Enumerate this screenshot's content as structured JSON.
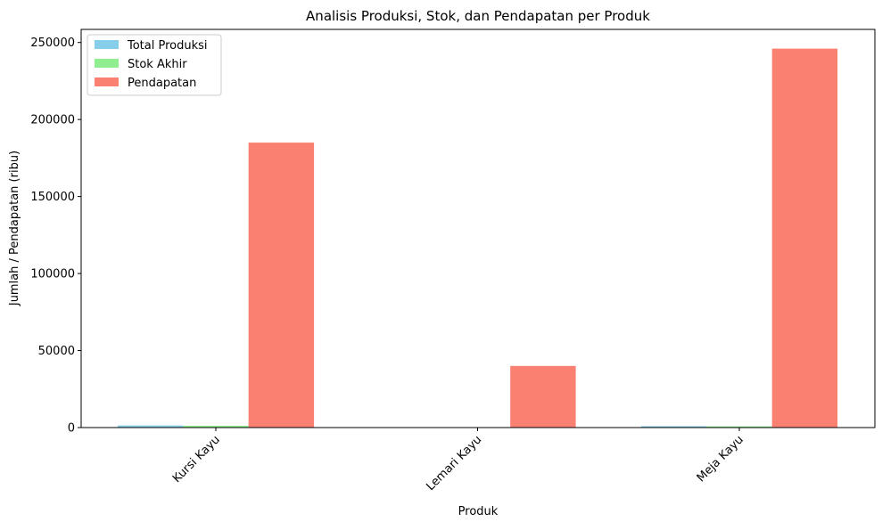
{
  "chart_data": {
    "type": "bar",
    "title": "Analisis Produksi, Stok, dan Pendapatan per Produk",
    "xlabel": "Produk",
    "ylabel": "Jumlah / Pendapatan (ribu)",
    "categories": [
      "Kursi Kayu",
      "Lemari Kayu",
      "Meja Kayu"
    ],
    "series": [
      {
        "name": "Total Produksi",
        "color": "#87CEEB",
        "values": [
          1350,
          250,
          900
        ]
      },
      {
        "name": "Stok Akhir",
        "color": "#90EE90",
        "values": [
          1200,
          200,
          800
        ]
      },
      {
        "name": "Pendapatan",
        "color": "#FA8072",
        "values": [
          185000,
          40000,
          246000
        ]
      }
    ],
    "ylim": [
      0,
      258500
    ],
    "yticks": [
      0,
      50000,
      100000,
      150000,
      200000,
      250000
    ],
    "ytick_labels": [
      "0",
      "50000",
      "100000",
      "150000",
      "200000",
      "250000"
    ],
    "grid": false,
    "legend": "top-left",
    "xtick_rotation": "45°"
  }
}
